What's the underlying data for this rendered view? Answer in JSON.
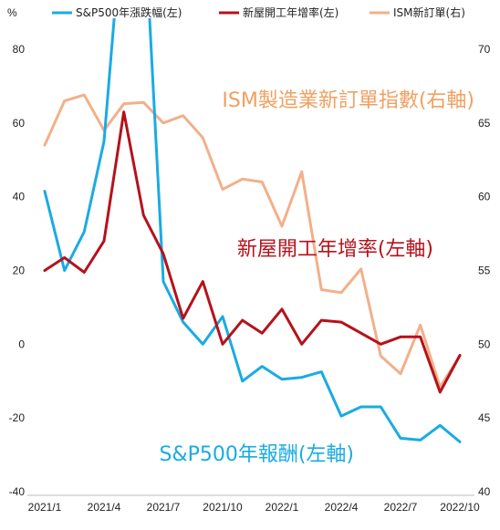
{
  "chart_data": {
    "type": "line",
    "title": "",
    "xlabel": "",
    "left_axis_unit": "%",
    "ylim_left": [
      -40,
      80
    ],
    "ylim_right": [
      40,
      70
    ],
    "yticks_left": [
      "80",
      "60",
      "40",
      "20",
      "0",
      "-20",
      "-40"
    ],
    "yticks_right": [
      "70",
      "65",
      "60",
      "55",
      "50",
      "45",
      "40"
    ],
    "grid": false,
    "legend_position": "top",
    "categories": [
      "2021/1",
      "2021/2",
      "2021/3",
      "2021/4",
      "2021/5",
      "2021/6",
      "2021/7",
      "2021/8",
      "2021/9",
      "2021/10",
      "2021/11",
      "2021/12",
      "2022/1",
      "2022/2",
      "2022/3",
      "2022/4",
      "2022/5",
      "2022/6",
      "2022/7",
      "2022/8",
      "2022/9",
      "2022/10"
    ],
    "x_tick_labels": [
      "2021/1",
      "2021/4",
      "2021/7",
      "2021/10",
      "2022/1",
      "2022/4",
      "2022/7",
      "2022/10"
    ],
    "series": [
      {
        "name": "S&P500年漲跌幅(左)",
        "axis": "left",
        "color": "#1aabe3",
        "values": [
          41.5,
          20,
          30.5,
          55,
          120,
          120,
          17,
          6,
          0,
          7.5,
          -10,
          -6,
          -9.5,
          -9,
          -7.5,
          -19.5,
          -17,
          -17,
          -25.5,
          -26,
          -22,
          -26.5
        ]
      },
      {
        "name": "新屋開工年增率(左)",
        "axis": "left",
        "color": "#b5121b",
        "values": [
          20,
          23.5,
          19.5,
          28,
          63,
          35,
          24.5,
          7,
          17,
          0,
          6.5,
          3,
          9.5,
          0,
          6.5,
          6,
          3,
          0,
          2,
          2,
          -13,
          -3
        ]
      },
      {
        "name": "ISM新訂單(右)",
        "axis": "right",
        "color": "#f2b08a",
        "values": [
          63.5,
          66.5,
          66.9,
          64.5,
          66.3,
          66.4,
          65,
          65.5,
          64,
          60.5,
          61.2,
          61,
          58,
          61.7,
          53.7,
          53.5,
          55.1,
          49.2,
          48,
          51.3,
          47.1,
          49.2
        ]
      }
    ],
    "annotations": [
      {
        "text": "ISM製造業新訂單指數(右軸)",
        "color": "#f0a062"
      },
      {
        "text": "新屋開工年增率(左軸)",
        "color": "#b5121b"
      },
      {
        "text": "S&P500年報酬(左軸)",
        "color": "#1aabe3"
      }
    ]
  }
}
